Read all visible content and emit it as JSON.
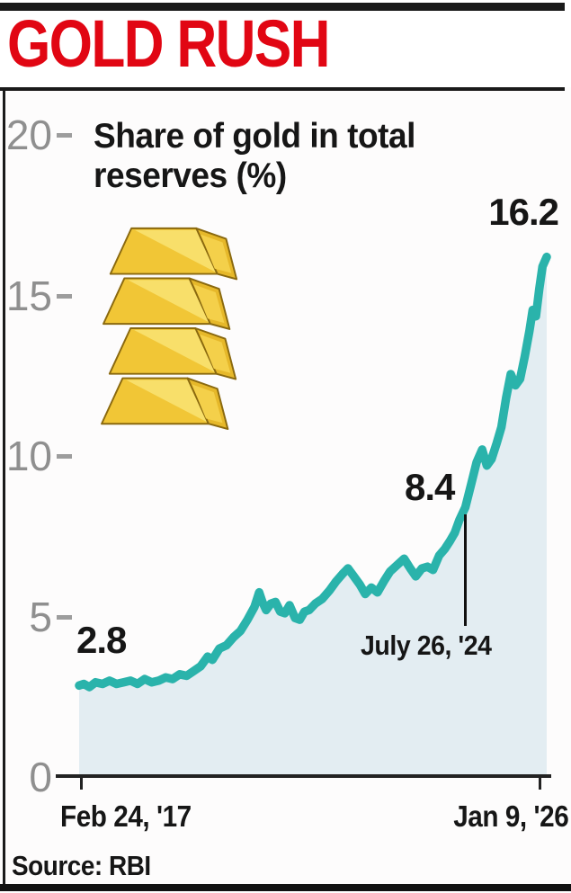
{
  "masthead": {
    "title": "GOLD RUSH"
  },
  "source_label": "Source: RBI",
  "icons": {
    "gold_bars": "gold-bars-icon"
  },
  "colors": {
    "headline_red": "#e10613",
    "line": "#2ab3ab",
    "area": "#e3edf2",
    "tick_gray": "#8f8f8f",
    "ink": "#161616"
  },
  "chart_data": {
    "type": "area",
    "title": "Share of gold in total reserves (%)",
    "title_lines": [
      "Share of gold in total",
      "reserves (%)"
    ],
    "ylim": [
      0,
      20
    ],
    "yticks": [
      0,
      5,
      10,
      15,
      20
    ],
    "grid": false,
    "x_axis": {
      "start_label": "Feb 24, '17",
      "end_label": "Jan 9, '26"
    },
    "annotations": [
      {
        "label": "2.8",
        "value": 2.8,
        "position": "start"
      },
      {
        "label": "8.4",
        "value": 8.4,
        "date_label": "July 26, '24"
      },
      {
        "label": "16.2",
        "value": 16.2,
        "position": "end"
      }
    ],
    "series": [
      {
        "name": "Share of gold in total reserves (%)",
        "points": [
          [
            0.0,
            2.85
          ],
          [
            0.01,
            2.9
          ],
          [
            0.022,
            2.8
          ],
          [
            0.035,
            2.95
          ],
          [
            0.05,
            2.9
          ],
          [
            0.065,
            3.0
          ],
          [
            0.08,
            2.9
          ],
          [
            0.095,
            2.95
          ],
          [
            0.11,
            3.0
          ],
          [
            0.125,
            2.9
          ],
          [
            0.14,
            3.05
          ],
          [
            0.155,
            2.95
          ],
          [
            0.17,
            3.0
          ],
          [
            0.185,
            3.1
          ],
          [
            0.2,
            3.05
          ],
          [
            0.215,
            3.2
          ],
          [
            0.23,
            3.15
          ],
          [
            0.245,
            3.3
          ],
          [
            0.26,
            3.45
          ],
          [
            0.275,
            3.75
          ],
          [
            0.285,
            3.65
          ],
          [
            0.3,
            4.0
          ],
          [
            0.315,
            4.1
          ],
          [
            0.33,
            4.35
          ],
          [
            0.345,
            4.55
          ],
          [
            0.36,
            4.9
          ],
          [
            0.375,
            5.3
          ],
          [
            0.385,
            5.75
          ],
          [
            0.392,
            5.45
          ],
          [
            0.4,
            5.2
          ],
          [
            0.41,
            5.4
          ],
          [
            0.42,
            5.45
          ],
          [
            0.43,
            5.15
          ],
          [
            0.44,
            5.1
          ],
          [
            0.45,
            5.35
          ],
          [
            0.462,
            4.95
          ],
          [
            0.472,
            4.9
          ],
          [
            0.482,
            5.15
          ],
          [
            0.492,
            5.2
          ],
          [
            0.505,
            5.4
          ],
          [
            0.52,
            5.55
          ],
          [
            0.535,
            5.8
          ],
          [
            0.55,
            6.1
          ],
          [
            0.565,
            6.35
          ],
          [
            0.575,
            6.5
          ],
          [
            0.585,
            6.3
          ],
          [
            0.6,
            6.0
          ],
          [
            0.612,
            5.7
          ],
          [
            0.625,
            5.9
          ],
          [
            0.638,
            5.75
          ],
          [
            0.652,
            6.1
          ],
          [
            0.665,
            6.4
          ],
          [
            0.68,
            6.6
          ],
          [
            0.695,
            6.8
          ],
          [
            0.708,
            6.5
          ],
          [
            0.72,
            6.25
          ],
          [
            0.733,
            6.5
          ],
          [
            0.745,
            6.55
          ],
          [
            0.757,
            6.45
          ],
          [
            0.77,
            6.9
          ],
          [
            0.782,
            7.1
          ],
          [
            0.793,
            7.35
          ],
          [
            0.803,
            7.6
          ],
          [
            0.813,
            8.0
          ],
          [
            0.826,
            8.4
          ],
          [
            0.838,
            9.1
          ],
          [
            0.85,
            9.8
          ],
          [
            0.862,
            10.2
          ],
          [
            0.872,
            9.7
          ],
          [
            0.882,
            9.9
          ],
          [
            0.893,
            10.4
          ],
          [
            0.903,
            10.9
          ],
          [
            0.913,
            11.8
          ],
          [
            0.923,
            12.55
          ],
          [
            0.933,
            12.2
          ],
          [
            0.943,
            12.4
          ],
          [
            0.953,
            13.1
          ],
          [
            0.963,
            13.9
          ],
          [
            0.97,
            14.55
          ],
          [
            0.977,
            14.35
          ],
          [
            0.984,
            15.2
          ],
          [
            0.991,
            15.9
          ],
          [
            1.0,
            16.2
          ]
        ]
      }
    ]
  }
}
